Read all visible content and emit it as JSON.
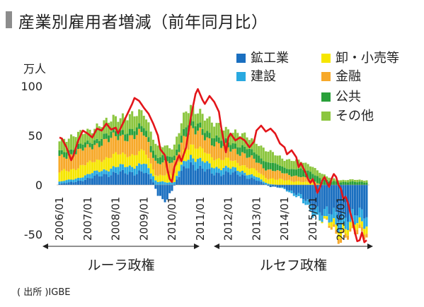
{
  "title": "産業別雇用者増減（前年同月比）",
  "unit_label": "万人",
  "source_note": "( 出所 )IGBE",
  "colors": {
    "mining_manufacturing": "#1a6fc0",
    "construction": "#29a9e0",
    "wholesale_retail": "#f6e600",
    "finance": "#f7a92a",
    "public": "#2aa03a",
    "other": "#8cc63f",
    "total_line": "#e3151a"
  },
  "periods": [
    {
      "label": "ルーラ政権",
      "start": "2006/01",
      "end": "2010/12"
    },
    {
      "label": "ルセフ政権",
      "start": "2011/01",
      "end": "2016/01"
    }
  ],
  "chart_data": {
    "type": "bar",
    "stacked": true,
    "xlabel": "",
    "ylabel": "万人",
    "ylim": [
      -60,
      110
    ],
    "yticks": [
      100,
      50,
      0,
      -50
    ],
    "grid": false,
    "legend_placement": "top-right",
    "x_tick_labels": [
      "2006/01",
      "2007/01",
      "2008/01",
      "2009/01",
      "2010/01",
      "2011/01",
      "2012/01",
      "2013/01",
      "2014/01",
      "2015/01",
      "2016/01"
    ],
    "series": [
      {
        "name": "鉱工業",
        "color_key": "mining_manufacturing",
        "anchors": [
          [
            0,
            1
          ],
          [
            6,
            3
          ],
          [
            12,
            6
          ],
          [
            18,
            10
          ],
          [
            24,
            12
          ],
          [
            30,
            12
          ],
          [
            36,
            14
          ],
          [
            40,
            3
          ],
          [
            42,
            -10
          ],
          [
            44,
            -18
          ],
          [
            46,
            -15
          ],
          [
            48,
            -6
          ],
          [
            50,
            5
          ],
          [
            54,
            20
          ],
          [
            56,
            22
          ],
          [
            60,
            16
          ],
          [
            66,
            12
          ],
          [
            72,
            12
          ],
          [
            78,
            10
          ],
          [
            84,
            5
          ],
          [
            90,
            -2
          ],
          [
            96,
            -3
          ],
          [
            102,
            -10
          ],
          [
            108,
            -22
          ],
          [
            114,
            -28
          ],
          [
            120,
            -32
          ],
          [
            121,
            -30
          ]
        ]
      },
      {
        "name": "建設",
        "color_key": "construction",
        "anchors": [
          [
            0,
            2
          ],
          [
            12,
            4
          ],
          [
            24,
            6
          ],
          [
            36,
            8
          ],
          [
            42,
            4
          ],
          [
            48,
            2
          ],
          [
            54,
            8
          ],
          [
            60,
            8
          ],
          [
            72,
            5
          ],
          [
            84,
            3
          ],
          [
            96,
            -1
          ],
          [
            108,
            -6
          ],
          [
            114,
            -9
          ],
          [
            120,
            -11
          ],
          [
            121,
            -10
          ]
        ]
      },
      {
        "name": "卸・小売等",
        "color_key": "wholesale_retail",
        "anchors": [
          [
            0,
            10
          ],
          [
            12,
            11
          ],
          [
            24,
            12
          ],
          [
            36,
            12
          ],
          [
            42,
            6
          ],
          [
            48,
            8
          ],
          [
            54,
            12
          ],
          [
            60,
            11
          ],
          [
            72,
            8
          ],
          [
            84,
            6
          ],
          [
            96,
            5
          ],
          [
            108,
            2
          ],
          [
            114,
            -3
          ],
          [
            120,
            -7
          ],
          [
            121,
            -6
          ]
        ]
      },
      {
        "name": "金融",
        "color_key": "finance",
        "anchors": [
          [
            0,
            15
          ],
          [
            12,
            16
          ],
          [
            24,
            18
          ],
          [
            36,
            18
          ],
          [
            42,
            12
          ],
          [
            48,
            12
          ],
          [
            54,
            14
          ],
          [
            60,
            17
          ],
          [
            72,
            12
          ],
          [
            84,
            10
          ],
          [
            96,
            7
          ],
          [
            108,
            3
          ],
          [
            114,
            -1
          ],
          [
            120,
            -5
          ],
          [
            121,
            -4
          ]
        ]
      },
      {
        "name": "公共",
        "color_key": "public",
        "anchors": [
          [
            0,
            6
          ],
          [
            12,
            5
          ],
          [
            24,
            6
          ],
          [
            36,
            7
          ],
          [
            42,
            6
          ],
          [
            48,
            6
          ],
          [
            54,
            8
          ],
          [
            60,
            7
          ],
          [
            72,
            6
          ],
          [
            84,
            8
          ],
          [
            96,
            6
          ],
          [
            108,
            8
          ],
          [
            114,
            4
          ],
          [
            120,
            3
          ],
          [
            121,
            3
          ]
        ]
      },
      {
        "name": "その他",
        "color_key": "other",
        "anchors": [
          [
            0,
            12
          ],
          [
            12,
            12
          ],
          [
            24,
            14
          ],
          [
            36,
            15
          ],
          [
            42,
            10
          ],
          [
            48,
            10
          ],
          [
            54,
            14
          ],
          [
            60,
            14
          ],
          [
            72,
            12
          ],
          [
            84,
            12
          ],
          [
            96,
            9
          ],
          [
            108,
            7
          ],
          [
            114,
            4
          ],
          [
            120,
            2
          ],
          [
            121,
            2
          ]
        ]
      }
    ],
    "total": {
      "color_key": "total_line",
      "anchors": [
        [
          0,
          48
        ],
        [
          1,
          47
        ],
        [
          3,
          38
        ],
        [
          5,
          25
        ],
        [
          6,
          30
        ],
        [
          8,
          45
        ],
        [
          10,
          55
        ],
        [
          12,
          52
        ],
        [
          14,
          48
        ],
        [
          16,
          57
        ],
        [
          18,
          55
        ],
        [
          20,
          62
        ],
        [
          22,
          56
        ],
        [
          24,
          58
        ],
        [
          25,
          52
        ],
        [
          27,
          62
        ],
        [
          29,
          72
        ],
        [
          31,
          82
        ],
        [
          32,
          88
        ],
        [
          34,
          85
        ],
        [
          36,
          78
        ],
        [
          38,
          72
        ],
        [
          40,
          62
        ],
        [
          42,
          50
        ],
        [
          43,
          36
        ],
        [
          45,
          30
        ],
        [
          46,
          16
        ],
        [
          47,
          6
        ],
        [
          48,
          3
        ],
        [
          49,
          18
        ],
        [
          51,
          30
        ],
        [
          52,
          24
        ],
        [
          54,
          38
        ],
        [
          56,
          68
        ],
        [
          58,
          92
        ],
        [
          59,
          97
        ],
        [
          61,
          86
        ],
        [
          62,
          82
        ],
        [
          64,
          90
        ],
        [
          66,
          84
        ],
        [
          68,
          74
        ],
        [
          69,
          58
        ],
        [
          70,
          45
        ],
        [
          71,
          33
        ],
        [
          72,
          48
        ],
        [
          73,
          52
        ],
        [
          75,
          45
        ],
        [
          77,
          48
        ],
        [
          79,
          45
        ],
        [
          81,
          38
        ],
        [
          83,
          44
        ],
        [
          84,
          55
        ],
        [
          86,
          60
        ],
        [
          88,
          54
        ],
        [
          90,
          57
        ],
        [
          92,
          52
        ],
        [
          94,
          42
        ],
        [
          96,
          38
        ],
        [
          97,
          31
        ],
        [
          99,
          35
        ],
        [
          101,
          28
        ],
        [
          102,
          18
        ],
        [
          103,
          22
        ],
        [
          105,
          12
        ],
        [
          106,
          6
        ],
        [
          107,
          2
        ],
        [
          108,
          6
        ],
        [
          109,
          0
        ],
        [
          110,
          -8
        ],
        [
          111,
          -3
        ],
        [
          112,
          4
        ],
        [
          113,
          8
        ],
        [
          114,
          3
        ],
        [
          115,
          -2
        ],
        [
          116,
          6
        ],
        [
          117,
          11
        ],
        [
          118,
          8
        ],
        [
          119,
          0
        ],
        [
          120,
          -4
        ],
        [
          121,
          -14
        ],
        [
          122,
          -12
        ],
        [
          123,
          -18
        ],
        [
          124,
          -28
        ],
        [
          125,
          -36
        ],
        [
          126,
          -48
        ],
        [
          127,
          -57
        ],
        [
          128,
          -56
        ],
        [
          129,
          -48
        ],
        [
          130,
          -58
        ],
        [
          131,
          -56
        ]
      ]
    }
  }
}
